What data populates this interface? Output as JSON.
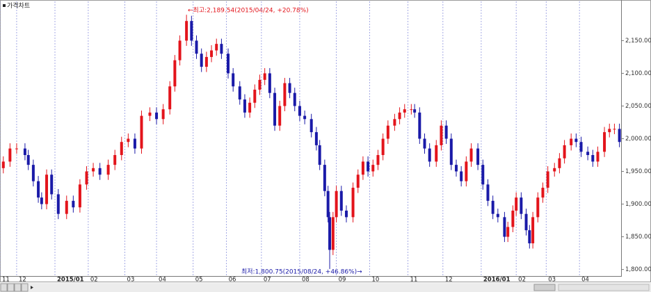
{
  "chart_data": {
    "type": "candlestick",
    "title": "가격차트",
    "x": [
      2,
      6,
      10,
      15,
      17,
      20,
      23,
      25,
      28,
      31,
      35,
      40,
      44,
      48,
      52,
      56,
      60,
      65,
      69,
      73,
      77,
      81,
      85,
      90,
      94,
      98,
      102,
      105,
      108,
      112,
      115,
      118,
      121,
      124,
      127,
      130,
      133,
      137,
      140,
      144,
      147,
      150,
      153,
      156,
      159,
      162,
      165,
      168,
      171,
      174,
      177,
      180,
      183,
      187,
      190,
      192,
      195,
      197,
      198,
      200,
      202,
      205,
      208,
      212,
      215,
      218,
      221,
      224,
      227,
      230,
      233,
      237,
      240,
      243,
      247,
      249,
      252,
      255,
      258,
      262,
      265,
      268,
      271,
      274,
      277,
      280,
      283,
      287,
      290,
      293,
      296,
      299,
      303,
      305,
      308,
      310,
      313,
      316,
      318,
      320,
      323,
      326,
      329,
      333,
      336,
      339,
      343,
      346,
      349,
      353,
      356,
      359,
      363,
      366,
      369,
      372
    ],
    "open": [
      1955,
      1965,
      1985,
      1985,
      1975,
      1960,
      1935,
      1910,
      1900,
      1945,
      1915,
      1885,
      1905,
      1895,
      1930,
      1950,
      1955,
      1945,
      1960,
      1975,
      1995,
      2000,
      1985,
      2035,
      2040,
      2030,
      2045,
      2080,
      2120,
      2150,
      2180,
      2150,
      2130,
      2110,
      2125,
      2135,
      2145,
      2130,
      2100,
      2080,
      2060,
      2040,
      2055,
      2075,
      2090,
      2100,
      2070,
      2020,
      2050,
      2085,
      2070,
      2050,
      2035,
      2030,
      2010,
      1990,
      1960,
      1920,
      1880,
      1830,
      1880,
      1920,
      1890,
      1880,
      1925,
      1945,
      1965,
      1950,
      1960,
      1975,
      2000,
      2020,
      2030,
      2040,
      2045,
      2045,
      2040,
      2000,
      1985,
      1965,
      1990,
      2020,
      2000,
      1960,
      1950,
      1935,
      1965,
      1985,
      1960,
      1930,
      1905,
      1885,
      1880,
      1850,
      1865,
      1890,
      1910,
      1885,
      1860,
      1840,
      1880,
      1910,
      1925,
      1950,
      1955,
      1970,
      1990,
      2000,
      1995,
      1980,
      1975,
      1965,
      1980,
      2010,
      2015,
      2015
    ],
    "high": [
      1973,
      1993,
      1993,
      1993,
      1983,
      1968,
      1943,
      1918,
      1953,
      1953,
      1923,
      1913,
      1913,
      1938,
      1958,
      1963,
      1963,
      1968,
      1983,
      2003,
      2008,
      2008,
      2043,
      2048,
      2048,
      2053,
      2088,
      2128,
      2158,
      2189.54,
      2188,
      2158,
      2138,
      2133,
      2143,
      2153,
      2153,
      2138,
      2108,
      2088,
      2068,
      2063,
      2083,
      2098,
      2108,
      2108,
      2078,
      2058,
      2093,
      2093,
      2078,
      2058,
      2043,
      2038,
      2018,
      1998,
      1968,
      1928,
      1888,
      1888,
      1928,
      1928,
      1898,
      1933,
      1953,
      1973,
      1973,
      1968,
      1983,
      2008,
      2028,
      2038,
      2048,
      2053,
      2053,
      2053,
      2048,
      2008,
      1993,
      1998,
      2028,
      2028,
      2008,
      1968,
      1958,
      1973,
      1993,
      1993,
      1968,
      1938,
      1913,
      1893,
      1888,
      1873,
      1898,
      1918,
      1918,
      1893,
      1868,
      1888,
      1918,
      1933,
      1958,
      1963,
      1978,
      1998,
      2008,
      2008,
      2003,
      1988,
      1983,
      1988,
      2018,
      2023,
      2023,
      2023
    ],
    "low": [
      1947,
      1957,
      1977,
      1967,
      1952,
      1927,
      1902,
      1892,
      1892,
      1907,
      1877,
      1877,
      1887,
      1887,
      1922,
      1942,
      1937,
      1937,
      1952,
      1967,
      1987,
      1977,
      1977,
      2027,
      2022,
      2022,
      2037,
      2072,
      2112,
      2142,
      2142,
      2122,
      2102,
      2102,
      2117,
      2127,
      2122,
      2092,
      2072,
      2052,
      2032,
      2032,
      2047,
      2067,
      2082,
      2062,
      2012,
      2012,
      2042,
      2062,
      2042,
      2027,
      2022,
      2002,
      1982,
      1952,
      1912,
      1872,
      1800.75,
      1822,
      1872,
      1882,
      1872,
      1872,
      1917,
      1937,
      1942,
      1942,
      1952,
      1967,
      1992,
      2012,
      2022,
      2032,
      2037,
      2032,
      1992,
      1977,
      1957,
      1957,
      1982,
      1992,
      1952,
      1942,
      1927,
      1927,
      1957,
      1952,
      1922,
      1897,
      1877,
      1872,
      1842,
      1842,
      1857,
      1882,
      1877,
      1852,
      1832,
      1832,
      1872,
      1902,
      1917,
      1942,
      1947,
      1962,
      1982,
      1987,
      1972,
      1967,
      1957,
      1957,
      1972,
      2002,
      2007,
      1987
    ],
    "close": [
      1965,
      1985,
      1985,
      1975,
      1960,
      1935,
      1910,
      1900,
      1945,
      1915,
      1885,
      1905,
      1895,
      1930,
      1950,
      1955,
      1945,
      1960,
      1975,
      1995,
      2000,
      1985,
      2035,
      2040,
      2030,
      2045,
      2080,
      2120,
      2150,
      2180,
      2150,
      2130,
      2110,
      2125,
      2135,
      2145,
      2130,
      2100,
      2080,
      2060,
      2040,
      2055,
      2075,
      2090,
      2100,
      2070,
      2020,
      2050,
      2085,
      2070,
      2050,
      2035,
      2030,
      2010,
      1990,
      1960,
      1920,
      1880,
      1830,
      1880,
      1920,
      1890,
      1880,
      1925,
      1945,
      1965,
      1950,
      1960,
      1975,
      2000,
      2020,
      2030,
      2040,
      2045,
      2045,
      2040,
      2000,
      1985,
      1965,
      1990,
      2020,
      2000,
      1960,
      1950,
      1935,
      1965,
      1985,
      1960,
      1930,
      1905,
      1885,
      1880,
      1850,
      1865,
      1890,
      1910,
      1885,
      1860,
      1840,
      1880,
      1910,
      1925,
      1950,
      1955,
      1970,
      1990,
      2000,
      1995,
      1980,
      1975,
      1965,
      1980,
      2010,
      2015,
      2015,
      1995
    ],
    "up_color": "#e3141b",
    "down_color": "#1a1aa8",
    "xlim": [
      0,
      373
    ],
    "xticks": [
      {
        "value": 0,
        "label": "11"
      },
      {
        "value": 10,
        "label": "12"
      },
      {
        "value": 33,
        "label": "2015/01"
      },
      {
        "value": 53,
        "label": "02"
      },
      {
        "value": 75,
        "label": "03"
      },
      {
        "value": 94,
        "label": "04"
      },
      {
        "value": 116,
        "label": "05"
      },
      {
        "value": 136,
        "label": "06"
      },
      {
        "value": 157,
        "label": "07"
      },
      {
        "value": 180,
        "label": "08"
      },
      {
        "value": 202,
        "label": "09"
      },
      {
        "value": 222,
        "label": "10"
      },
      {
        "value": 245,
        "label": "11"
      },
      {
        "value": 266,
        "label": "12"
      },
      {
        "value": 289,
        "label": "2016/01"
      },
      {
        "value": 310,
        "label": "02"
      },
      {
        "value": 328,
        "label": "03"
      },
      {
        "value": 348,
        "label": "04"
      }
    ],
    "ylim": [
      1790,
      2210
    ],
    "yticks": [
      {
        "value": 1800,
        "label": "1,800.00"
      },
      {
        "value": 1850,
        "label": "1,850.00"
      },
      {
        "value": 1900,
        "label": "1,900.00"
      },
      {
        "value": 1950,
        "label": "1,950.00"
      },
      {
        "value": 2000,
        "label": "2,000.00"
      },
      {
        "value": 2050,
        "label": "2,050.00"
      },
      {
        "value": 2100,
        "label": "2,100.00"
      },
      {
        "value": 2150,
        "label": "2,150.00"
      }
    ],
    "annotations": [
      "←최고:2,189.54(2015/04/24, +20.78%)",
      "최저:1,800.75(2015/08/24, +46.86%)→"
    ]
  }
}
